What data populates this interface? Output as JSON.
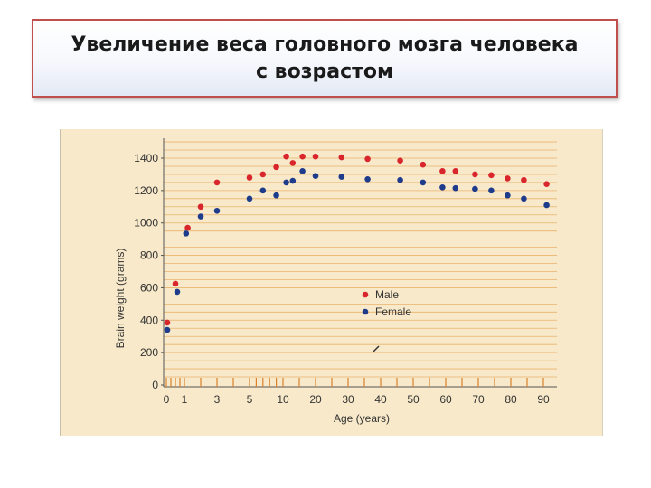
{
  "slide": {
    "title_line1": "Увеличение веса головного мозга человека",
    "title_line2": "с возрастом"
  },
  "chart_data": {
    "type": "scatter",
    "xlabel": "Age (years)",
    "ylabel": "Brain weight (grams)",
    "ylim": [
      0,
      1400
    ],
    "yticks": [
      0,
      200,
      400,
      600,
      800,
      1000,
      1200,
      1400
    ],
    "xticks": [
      "0",
      "1",
      "3",
      "5",
      "10",
      "20",
      "30",
      "40",
      "50",
      "60",
      "70",
      "80",
      "90"
    ],
    "legend_position": "center-right",
    "grid": "horizontal",
    "series": [
      {
        "name": "Male",
        "color": "#d9262c",
        "points": [
          {
            "x": "0.05",
            "y": 385
          },
          {
            "x": "0.5",
            "y": 625
          },
          {
            "x": "1.2",
            "y": 970
          },
          {
            "x": "2",
            "y": 1100
          },
          {
            "x": "3",
            "y": 1250
          },
          {
            "x": "5",
            "y": 1280
          },
          {
            "x": "7",
            "y": 1300
          },
          {
            "x": "9",
            "y": 1345
          },
          {
            "x": "11",
            "y": 1410
          },
          {
            "x": "13",
            "y": 1370
          },
          {
            "x": "16",
            "y": 1410
          },
          {
            "x": "20",
            "y": 1410
          },
          {
            "x": "28",
            "y": 1405
          },
          {
            "x": "36",
            "y": 1395
          },
          {
            "x": "46",
            "y": 1385
          },
          {
            "x": "53",
            "y": 1360
          },
          {
            "x": "59",
            "y": 1320
          },
          {
            "x": "63",
            "y": 1320
          },
          {
            "x": "69",
            "y": 1300
          },
          {
            "x": "74",
            "y": 1295
          },
          {
            "x": "79",
            "y": 1275
          },
          {
            "x": "84",
            "y": 1265
          },
          {
            "x": "91",
            "y": 1240
          }
        ]
      },
      {
        "name": "Female",
        "color": "#1f3b8c",
        "points": [
          {
            "x": "0.05",
            "y": 340
          },
          {
            "x": "0.6",
            "y": 575
          },
          {
            "x": "1.1",
            "y": 935
          },
          {
            "x": "2",
            "y": 1040
          },
          {
            "x": "3",
            "y": 1075
          },
          {
            "x": "5",
            "y": 1150
          },
          {
            "x": "7",
            "y": 1200
          },
          {
            "x": "9",
            "y": 1170
          },
          {
            "x": "11",
            "y": 1250
          },
          {
            "x": "13",
            "y": 1260
          },
          {
            "x": "16",
            "y": 1320
          },
          {
            "x": "20",
            "y": 1290
          },
          {
            "x": "28",
            "y": 1285
          },
          {
            "x": "36",
            "y": 1270
          },
          {
            "x": "46",
            "y": 1265
          },
          {
            "x": "53",
            "y": 1250
          },
          {
            "x": "59",
            "y": 1220
          },
          {
            "x": "63",
            "y": 1215
          },
          {
            "x": "69",
            "y": 1210
          },
          {
            "x": "74",
            "y": 1200
          },
          {
            "x": "79",
            "y": 1170
          },
          {
            "x": "84",
            "y": 1150
          },
          {
            "x": "91",
            "y": 1110
          }
        ]
      }
    ]
  }
}
